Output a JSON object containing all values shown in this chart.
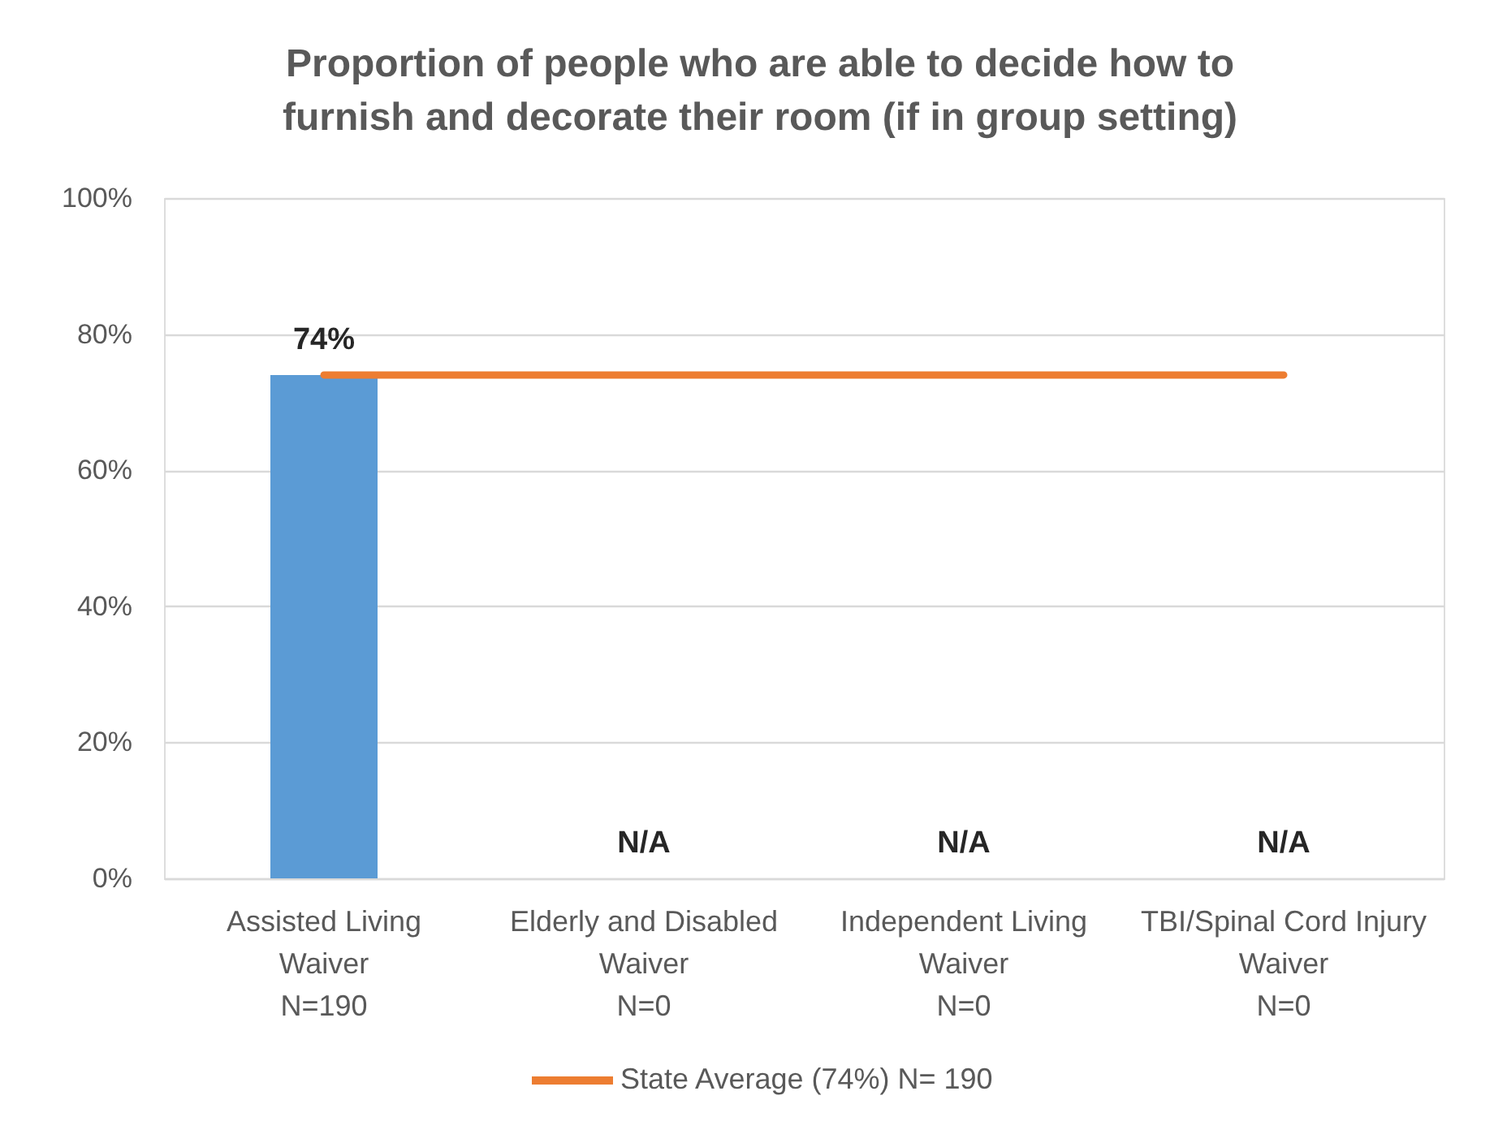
{
  "chart_data": {
    "type": "bar",
    "title": "Proportion of people who are able to decide how to\nfurnish and decorate their room (if in group setting)",
    "categories": [
      "Assisted Living\nWaiver\nN=190",
      "Elderly and Disabled\nWaiver\nN=0",
      "Independent Living\nWaiver\nN=0",
      "TBI/Spinal Cord Injury\nWaiver\nN=0"
    ],
    "series": [
      {
        "color": "#5b9bd5",
        "values": [
          74,
          null,
          null,
          null
        ],
        "value_labels": [
          "74%",
          "N/A",
          "N/A",
          "N/A"
        ]
      },
      {
        "type": "line",
        "name": "State Average (74%) N= 190",
        "color": "#ed7d31",
        "values": [
          74,
          74,
          74,
          74
        ],
        "line_style": "solid"
      }
    ],
    "ylim": [
      0,
      100
    ],
    "yticks": [
      {
        "value": 0,
        "label": "0%"
      },
      {
        "value": 20,
        "label": "20%"
      },
      {
        "value": 40,
        "label": "40%"
      },
      {
        "value": 60,
        "label": "60%"
      },
      {
        "value": 80,
        "label": "80%"
      },
      {
        "value": 100,
        "label": "100%"
      }
    ],
    "grid": "y",
    "legend": "bottom"
  }
}
